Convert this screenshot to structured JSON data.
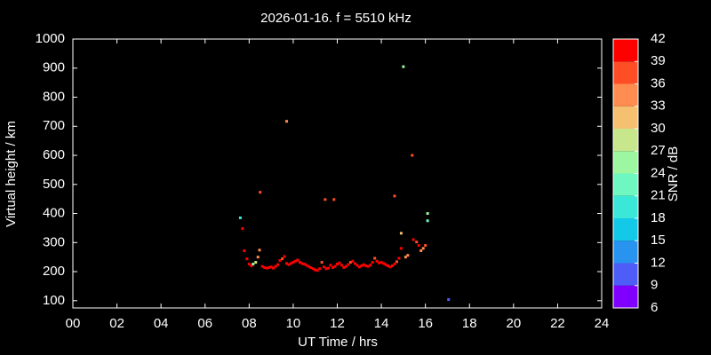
{
  "chart_data": {
    "type": "scatter",
    "title": "2026-01-16. f = 5510 kHz",
    "x_label": "UT Time / hrs",
    "y_label": "Virtual height / km",
    "xlim": [
      0,
      24
    ],
    "ylim": [
      75,
      1000
    ],
    "xticks": [
      {
        "value": 0,
        "label": "00"
      },
      {
        "value": 2,
        "label": "02"
      },
      {
        "value": 4,
        "label": "04"
      },
      {
        "value": 6,
        "label": "06"
      },
      {
        "value": 8,
        "label": "08"
      },
      {
        "value": 10,
        "label": "10"
      },
      {
        "value": 12,
        "label": "12"
      },
      {
        "value": 14,
        "label": "14"
      },
      {
        "value": 16,
        "label": "16"
      },
      {
        "value": 18,
        "label": "18"
      },
      {
        "value": 20,
        "label": "20"
      },
      {
        "value": 22,
        "label": "22"
      },
      {
        "value": 24,
        "label": "24"
      }
    ],
    "yticks": [
      100,
      200,
      300,
      400,
      500,
      600,
      700,
      800,
      900,
      1000
    ],
    "colorbar": {
      "label": "SNR / dB",
      "lim": [
        6,
        42
      ],
      "ticks": [
        6,
        9,
        12,
        15,
        18,
        21,
        24,
        27,
        30,
        33,
        36,
        39,
        42
      ],
      "colors": [
        "#8000ff",
        "#4e5cf8",
        "#2894f0",
        "#14c8e8",
        "#3be8d8",
        "#6ef7c0",
        "#9cf7a0",
        "#c8e68c",
        "#f5c070",
        "#ff8c50",
        "#ff4d26",
        "#ff0000"
      ]
    },
    "x": [
      7.6,
      7.7,
      7.78,
      7.9,
      8.0,
      8.1,
      8.18,
      8.3,
      8.4,
      8.47,
      8.5,
      9.7,
      11.45,
      11.85,
      14.6,
      14.9,
      15.0,
      15.4,
      14.9,
      15.1,
      15.2,
      15.45,
      15.6,
      15.7,
      15.8,
      15.9,
      16.0,
      16.1,
      16.1,
      17.05,
      8.6,
      8.7,
      8.8,
      8.9,
      9.0,
      9.1,
      9.2,
      9.3,
      9.4,
      9.5,
      9.6,
      9.7,
      9.8,
      9.9,
      10.0,
      10.1,
      10.2,
      10.3,
      10.4,
      10.5,
      10.6,
      10.7,
      10.8,
      10.9,
      11.0,
      11.1,
      11.2,
      11.3,
      11.4,
      11.5,
      11.6,
      11.7,
      11.8,
      11.9,
      12.0,
      12.1,
      12.2,
      12.3,
      12.4,
      12.5,
      12.6,
      12.7,
      12.8,
      12.9,
      13.0,
      13.1,
      13.2,
      13.3,
      13.4,
      13.5,
      13.6,
      13.7,
      13.8,
      13.9,
      14.0,
      14.1,
      14.2,
      14.3,
      14.4,
      14.5,
      14.6,
      14.7,
      14.8
    ],
    "y": [
      385,
      348,
      272,
      244,
      226,
      220,
      226,
      232,
      250,
      274,
      473,
      717,
      448,
      448,
      460,
      332,
      905,
      600,
      280,
      250,
      256,
      310,
      302,
      290,
      272,
      280,
      290,
      400,
      375,
      104,
      218,
      214,
      212,
      214,
      216,
      212,
      218,
      224,
      238,
      244,
      252,
      228,
      224,
      228,
      232,
      236,
      240,
      232,
      228,
      226,
      222,
      218,
      214,
      210,
      206,
      204,
      210,
      232,
      216,
      210,
      212,
      222,
      214,
      218,
      226,
      230,
      222,
      214,
      218,
      224,
      232,
      236,
      228,
      222,
      216,
      220,
      224,
      220,
      218,
      222,
      232,
      246,
      236,
      230,
      232,
      228,
      224,
      220,
      216,
      220,
      226,
      234,
      246
    ],
    "snr": [
      20,
      40,
      40,
      40,
      40,
      40,
      26,
      27,
      34,
      35,
      37,
      35,
      38,
      38,
      38,
      32,
      25,
      38,
      40,
      34,
      33,
      40,
      38,
      40,
      33,
      33,
      37,
      25,
      21,
      10,
      40,
      40,
      41,
      40,
      40,
      41,
      40,
      40,
      40,
      38,
      40,
      40,
      41,
      40,
      40,
      40,
      41,
      40,
      40,
      40,
      41,
      40,
      40,
      40,
      41,
      40,
      40,
      38,
      40,
      41,
      40,
      40,
      40,
      41,
      40,
      40,
      40,
      41,
      40,
      40,
      38,
      40,
      40,
      41,
      40,
      40,
      40,
      41,
      40,
      40,
      40,
      38,
      40,
      41,
      40,
      40,
      40,
      41,
      40,
      40,
      40,
      38,
      40
    ]
  }
}
